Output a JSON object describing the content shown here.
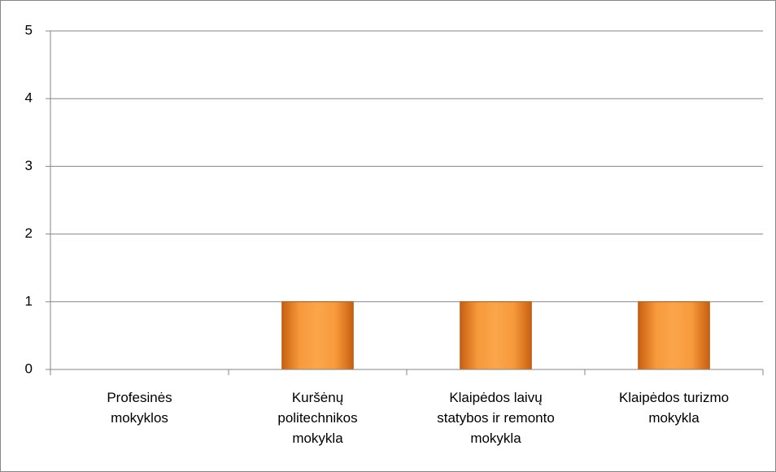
{
  "chart_data": {
    "type": "bar",
    "categories": [
      "Profesinės\nmokyklos",
      "Kuršėnų\npolitechnikos\nmokykla",
      "Klaipėdos laivų\nstatybos ir remonto\nmokykla",
      "Klaipėdos turizmo\nmokykla"
    ],
    "values": [
      0,
      1,
      1,
      1
    ],
    "color": "#f7922e",
    "ylim": [
      0,
      5
    ],
    "yticks": [
      0,
      1,
      2,
      3,
      4,
      5
    ],
    "grid": true
  }
}
